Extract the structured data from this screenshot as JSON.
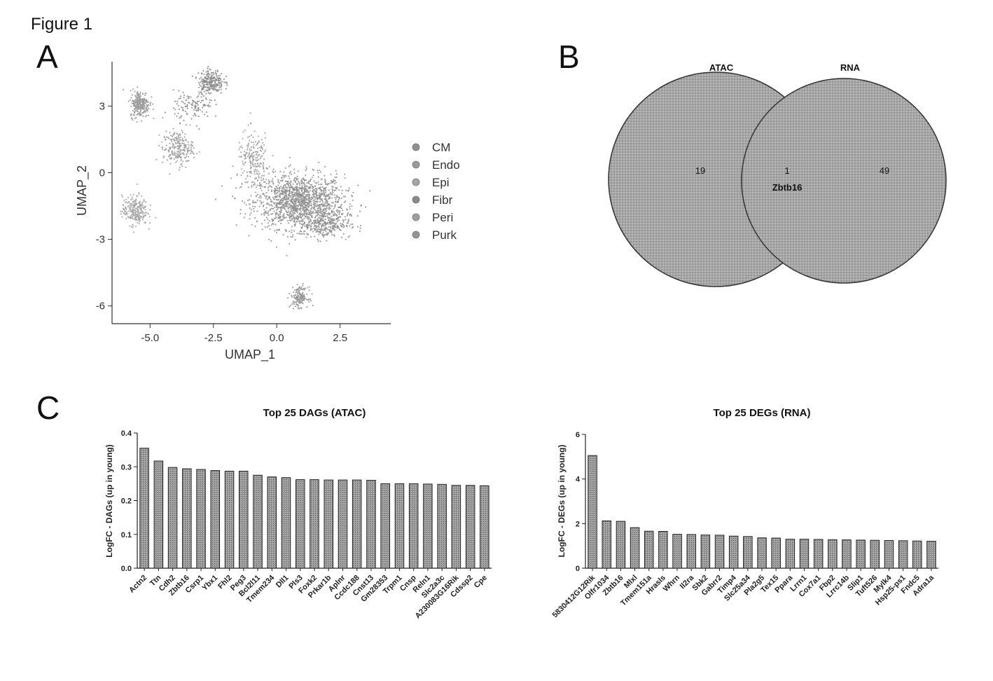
{
  "figure": {
    "title": "Figure 1"
  },
  "panels": {
    "a": "A",
    "b": "B",
    "c": "C"
  },
  "chart_data": [
    {
      "id": "umap",
      "type": "scatter",
      "title": "",
      "xlabel": "UMAP_1",
      "ylabel": "UMAP_2",
      "xlim": [
        -6.5,
        4.5
      ],
      "ylim": [
        -6.8,
        5.0
      ],
      "xticks": [
        {
          "v": -5.0,
          "label": "-5.0"
        },
        {
          "v": -2.5,
          "label": "-2.5"
        },
        {
          "v": 0.0,
          "label": "0.0"
        },
        {
          "v": 2.5,
          "label": "2.5"
        }
      ],
      "yticks": [
        {
          "v": 3,
          "label": "3"
        },
        {
          "v": 0,
          "label": "0"
        },
        {
          "v": -3,
          "label": "-3"
        },
        {
          "v": -6,
          "label": "-6"
        }
      ],
      "legend_position": "right",
      "series": [
        {
          "name": "CM",
          "color": "#8f8f8f",
          "clusters": [
            {
              "cx": 0.9,
              "cy": -1.3,
              "sx": 1.6,
              "sy": 1.1,
              "n": 1400
            },
            {
              "cx": 1.9,
              "cy": -2.3,
              "sx": 0.9,
              "sy": 0.6,
              "n": 300
            }
          ]
        },
        {
          "name": "Endo",
          "color": "#9a9a9a",
          "clusters": [
            {
              "cx": -5.4,
              "cy": 3.1,
              "sx": 0.35,
              "sy": 0.55,
              "n": 260
            },
            {
              "cx": -3.9,
              "cy": 1.1,
              "sx": 0.55,
              "sy": 0.7,
              "n": 220
            }
          ]
        },
        {
          "name": "Epi",
          "color": "#a6a6a6",
          "clusters": [
            {
              "cx": -5.6,
              "cy": -1.7,
              "sx": 0.45,
              "sy": 0.6,
              "n": 260
            }
          ]
        },
        {
          "name": "Fibr",
          "color": "#8a8a8a",
          "clusters": [
            {
              "cx": -2.6,
              "cy": 4.1,
              "sx": 0.45,
              "sy": 0.5,
              "n": 240
            },
            {
              "cx": -3.3,
              "cy": 3.0,
              "sx": 0.7,
              "sy": 0.6,
              "n": 120
            }
          ]
        },
        {
          "name": "Peri",
          "color": "#a0a0a0",
          "clusters": [
            {
              "cx": -0.9,
              "cy": 0.5,
              "sx": 0.6,
              "sy": 1.2,
              "n": 220
            }
          ]
        },
        {
          "name": "Purk",
          "color": "#959595",
          "clusters": [
            {
              "cx": 0.9,
              "cy": -5.6,
              "sx": 0.3,
              "sy": 0.4,
              "n": 160
            }
          ]
        }
      ]
    },
    {
      "id": "venn",
      "type": "venn",
      "sets": [
        {
          "label": "ATAC",
          "only": 19
        },
        {
          "label": "RNA",
          "only": 49
        }
      ],
      "overlap": {
        "count": 1,
        "item": "Zbtb16"
      }
    },
    {
      "id": "dags",
      "type": "bar",
      "title": "Top 25 DAGs (ATAC)",
      "ylabel": "LogFC - DAGs (up in young)",
      "ylim": [
        0,
        0.4
      ],
      "yticks": [
        {
          "v": 0,
          "label": "0.0"
        },
        {
          "v": 0.1,
          "label": "0.1"
        },
        {
          "v": 0.2,
          "label": "0.2"
        },
        {
          "v": 0.3,
          "label": "0.3"
        },
        {
          "v": 0.4,
          "label": "0.4"
        }
      ],
      "categories": [
        "Actn2",
        "Ttn",
        "Cdh2",
        "Zbtb16",
        "Csrp1",
        "Ybx1",
        "Fhl2",
        "Peg3",
        "Bcl2l11",
        "Tmem234",
        "Dll1",
        "Pls3",
        "Foxk2",
        "Prkar1b",
        "Aplnr",
        "Ccdc188",
        "Cnst13",
        "Gm28353",
        "Trpm1",
        "Cnsp",
        "Reln1",
        "Slc2a3c",
        "A230083G16Rik",
        "Cdssp2",
        "Cpe"
      ],
      "values": [
        0.355,
        0.317,
        0.298,
        0.294,
        0.292,
        0.289,
        0.287,
        0.287,
        0.275,
        0.27,
        0.268,
        0.262,
        0.262,
        0.261,
        0.261,
        0.261,
        0.26,
        0.25,
        0.25,
        0.25,
        0.249,
        0.248,
        0.245,
        0.245,
        0.244
      ]
    },
    {
      "id": "degs",
      "type": "bar",
      "title": "Top 25 DEGs (RNA)",
      "ylabel": "LogFC - DEGs (up in young)",
      "ylim": [
        0,
        6
      ],
      "yticks": [
        {
          "v": 0,
          "label": "0"
        },
        {
          "v": 2,
          "label": "2"
        },
        {
          "v": 4,
          "label": "4"
        },
        {
          "v": 6,
          "label": "6"
        }
      ],
      "categories": [
        "5830412G12Rik",
        "Olfr1034",
        "Zbtb16",
        "Mlxl",
        "Tmem151a",
        "Hrasls",
        "Whrn",
        "Il2ra",
        "Sbk2",
        "Gabrr2",
        "Timp4",
        "Slc25a34",
        "Pla2g5",
        "Tex15",
        "Ppara",
        "Lrrn1",
        "Cox7a1",
        "Fbp2",
        "Lrrc14b",
        "Slip1",
        "Tuft526",
        "Mylk4",
        "Hsp25-ps1",
        "Fndc5",
        "Adra1a"
      ],
      "values": [
        5.05,
        2.12,
        2.1,
        1.82,
        1.66,
        1.65,
        1.52,
        1.51,
        1.49,
        1.48,
        1.44,
        1.42,
        1.36,
        1.35,
        1.3,
        1.3,
        1.29,
        1.28,
        1.27,
        1.26,
        1.25,
        1.24,
        1.23,
        1.22,
        1.21
      ]
    }
  ]
}
